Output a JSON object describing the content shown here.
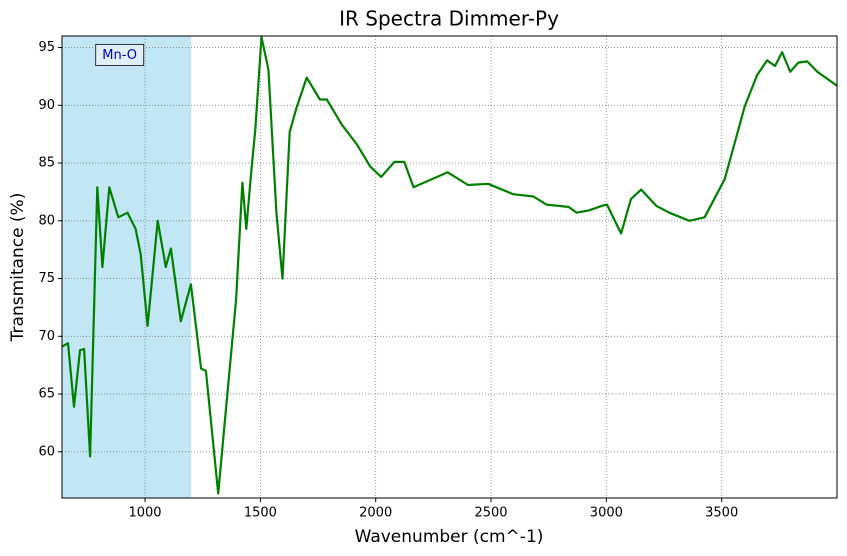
{
  "chart_data": {
    "type": "line",
    "title": "IR Spectra Dimmer-Py",
    "x_label": "Wavenumber (cm^-1)",
    "y_label": "Transmitance (%)",
    "x": [
      640,
      666,
      692,
      718,
      736,
      762,
      793,
      815,
      845,
      884,
      924,
      959,
      981,
      1011,
      1055,
      1090,
      1112,
      1155,
      1199,
      1243,
      1264,
      1317,
      1395,
      1422,
      1439,
      1461,
      1478,
      1505,
      1535,
      1570,
      1596,
      1627,
      1657,
      1701,
      1758,
      1788,
      1854,
      1919,
      1976,
      2024,
      2081,
      2124,
      2164,
      2312,
      2400,
      2487,
      2596,
      2684,
      2740,
      2836,
      2871,
      2924,
      2981,
      3003,
      3064,
      3107,
      3151,
      3216,
      3273,
      3360,
      3426,
      3513,
      3600,
      3653,
      3697,
      3731,
      3762,
      3797,
      3832,
      3871,
      3915,
      4000
    ],
    "values": [
      69.1,
      69.4,
      63.9,
      68.8,
      68.9,
      59.6,
      82.9,
      76.0,
      82.9,
      80.3,
      80.7,
      79.3,
      77.1,
      70.9,
      80.0,
      76.0,
      77.6,
      71.3,
      74.5,
      67.2,
      67.0,
      56.4,
      73.2,
      83.3,
      79.3,
      84.4,
      87.9,
      95.9,
      93.1,
      80.6,
      75.0,
      87.7,
      89.8,
      92.4,
      90.5,
      90.5,
      88.3,
      86.6,
      84.7,
      83.8,
      85.1,
      85.1,
      82.9,
      84.2,
      83.1,
      83.2,
      82.3,
      82.1,
      81.4,
      81.2,
      80.7,
      80.9,
      81.3,
      81.4,
      78.9,
      81.9,
      82.7,
      81.3,
      80.7,
      80.0,
      80.3,
      83.6,
      89.9,
      92.6,
      93.9,
      93.4,
      94.6,
      92.9,
      93.7,
      93.8,
      92.9,
      91.7
    ],
    "color": "#008000",
    "xlim": [
      640,
      4000
    ],
    "ylim": [
      56,
      96
    ],
    "xticks": [
      1000,
      1500,
      2000,
      2500,
      3000,
      3500
    ],
    "yticks": [
      60,
      65,
      70,
      75,
      80,
      85,
      90,
      95
    ],
    "grid": true,
    "shaded_region": [
      640,
      1200
    ],
    "shaded_color": "#87ceeb",
    "annotation": {
      "text": "Mn-O",
      "x": 890,
      "y": 94.4
    }
  }
}
